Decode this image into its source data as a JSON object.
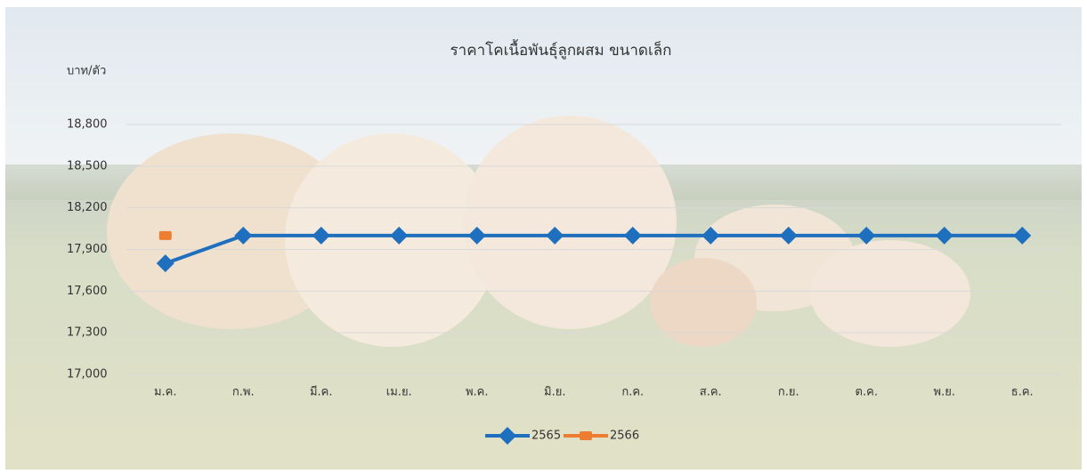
{
  "chart_data": {
    "type": "line",
    "title": "ราคาโคเนื้อพันธุ์ลูกผสม ขนาดเล็ก",
    "y_label": "บาท/ตัว",
    "categories": [
      "ม.ค.",
      "ก.พ.",
      "มี.ค.",
      "เม.ย.",
      "พ.ค.",
      "มิ.ย.",
      "ก.ค.",
      "ส.ค.",
      "ก.ย.",
      "ต.ค.",
      "พ.ย.",
      "ธ.ค."
    ],
    "series": [
      {
        "name": "2565",
        "color": "#1f6fbf",
        "marker": "diamond",
        "values": [
          17800,
          18000,
          18000,
          18000,
          18000,
          18000,
          18000,
          18000,
          18000,
          18000,
          18000,
          18000
        ]
      },
      {
        "name": "2566",
        "color": "#ed7d31",
        "marker": "square",
        "values": [
          18000,
          null,
          null,
          null,
          null,
          null,
          null,
          null,
          null,
          null,
          null,
          null
        ]
      }
    ],
    "ylim": [
      17000,
      18800
    ],
    "yticks": [
      {
        "value": 17000,
        "label": "17,000"
      },
      {
        "value": 17300,
        "label": "17,300"
      },
      {
        "value": 17600,
        "label": "17,600"
      },
      {
        "value": 17900,
        "label": "17,900"
      },
      {
        "value": 18200,
        "label": "18,200"
      },
      {
        "value": 18500,
        "label": "18,500"
      },
      {
        "value": 18800,
        "label": "18,800"
      }
    ],
    "grid": true,
    "legend": "bottom"
  }
}
